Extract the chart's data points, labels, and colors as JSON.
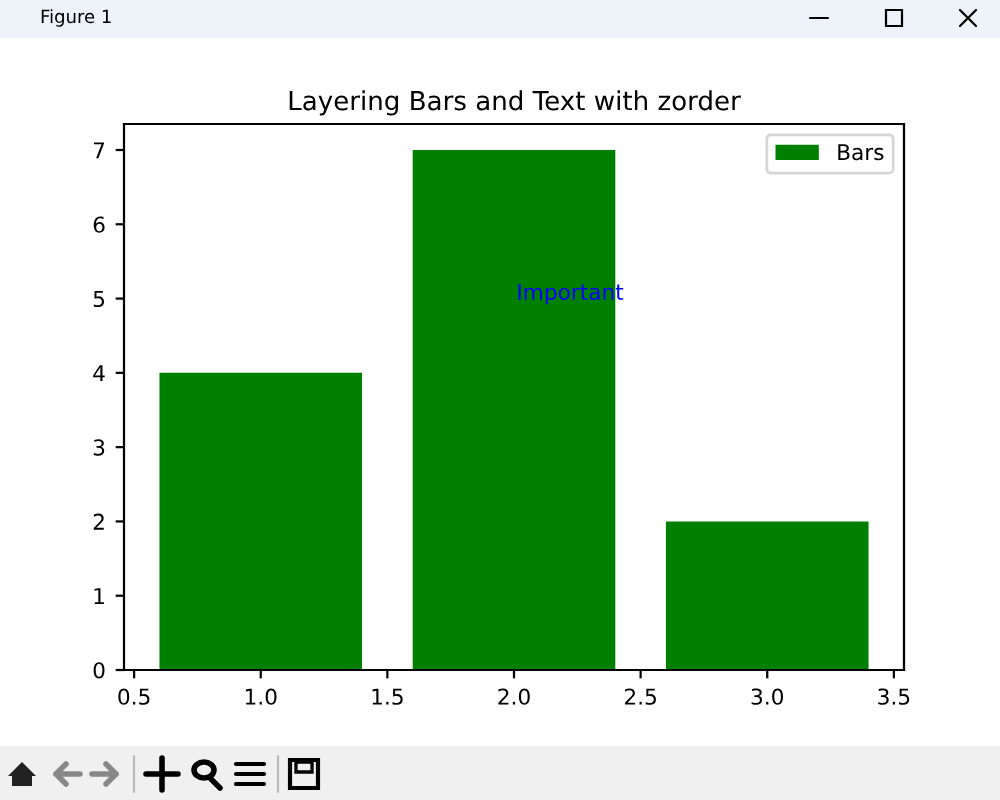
{
  "chart_data": {
    "type": "bar",
    "title": "Layering Bars and Text with zorder",
    "x": [
      1,
      2,
      3
    ],
    "series": [
      {
        "name": "Bars",
        "color": "#008000",
        "values": [
          4,
          7,
          2
        ]
      }
    ],
    "xlim": [
      0.46,
      3.54
    ],
    "xticks": [
      {
        "value": 0.5,
        "label": "0.5"
      },
      {
        "value": 1,
        "label": "1.0"
      },
      {
        "value": 1.5,
        "label": "1.5"
      },
      {
        "value": 2,
        "label": "2.0"
      },
      {
        "value": 2.5,
        "label": "2.5"
      },
      {
        "value": 3,
        "label": "3.0"
      },
      {
        "value": 3.5,
        "label": "3.5"
      }
    ],
    "ylim": [
      0,
      7.35
    ],
    "yticks": [
      0,
      1,
      2,
      3,
      4,
      5,
      6,
      7
    ],
    "legend": "top right",
    "grid": false,
    "annotations": [
      "Important",
      "Figure 1"
    ]
  }
}
